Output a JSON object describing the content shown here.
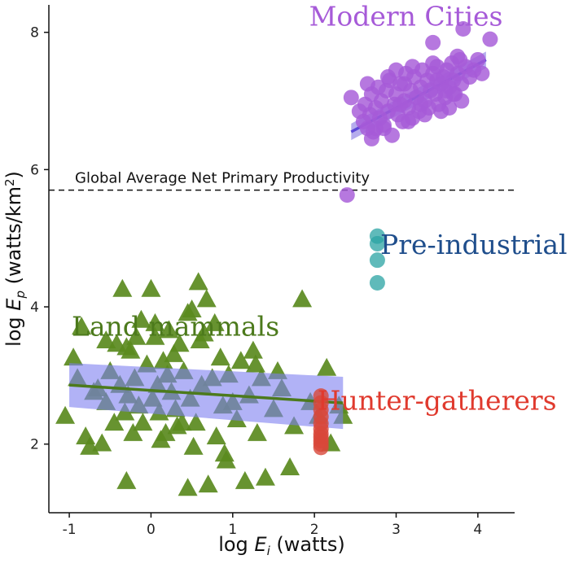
{
  "chart_data": {
    "type": "scatter",
    "xlabel": {
      "prefix": "log ",
      "var": "E",
      "sub": "i",
      "unit": " (watts)"
    },
    "ylabel": {
      "prefix": "log ",
      "var": "E",
      "sub": "p",
      "unit": " (watts/km",
      "sup": "2",
      "close": ")"
    },
    "xlim": [
      -1.25,
      4.45
    ],
    "ylim": [
      1.0,
      8.4
    ],
    "x_ticks": [
      -1,
      0,
      1,
      2,
      3,
      4
    ],
    "y_ticks": [
      2,
      4,
      6,
      8
    ],
    "grid": false,
    "reference_line": {
      "y": 5.7,
      "label": "Global Average Net Primary Productivity",
      "style": "dashed"
    },
    "colors": {
      "land_mammals": "#5a8a1e",
      "land_fit_band": "#7d7ff0",
      "land_fit_line": "#4c7a1c",
      "cities": "#a65ad8",
      "cities_fit": "#5b48d8",
      "pre_industrial": "#2aa3a3",
      "hunter_gatherers": "#d8473a",
      "pre_industrial_label": "#1f4e8c",
      "hunter_label": "#e03a2e"
    },
    "series": [
      {
        "name": "Modern Cities",
        "marker": "circle",
        "color_key": "cities",
        "x": [
          2.45,
          2.55,
          2.6,
          2.62,
          2.65,
          2.68,
          2.7,
          2.72,
          2.75,
          2.78,
          2.8,
          2.82,
          2.85,
          2.88,
          2.9,
          2.92,
          2.95,
          2.98,
          3.0,
          3.02,
          3.05,
          3.08,
          3.1,
          3.12,
          3.15,
          3.18,
          3.2,
          3.22,
          3.25,
          3.28,
          3.3,
          3.32,
          3.35,
          3.38,
          3.4,
          3.42,
          3.45,
          3.48,
          3.5,
          3.52,
          3.55,
          3.58,
          3.6,
          3.62,
          3.65,
          3.68,
          3.7,
          3.72,
          3.75,
          3.78,
          3.8,
          3.85,
          3.9,
          3.95,
          4.0,
          4.05,
          2.75,
          2.9,
          3.05,
          3.2,
          3.35,
          3.5,
          3.65,
          3.8,
          2.65,
          2.85,
          3.0,
          3.15,
          3.3,
          3.45,
          3.6,
          3.75,
          2.7,
          3.1,
          3.55,
          3.7,
          3.45,
          3.82,
          4.15,
          2.4
        ],
        "y": [
          7.05,
          6.85,
          6.7,
          6.95,
          6.6,
          6.8,
          7.1,
          6.55,
          6.9,
          7.2,
          6.75,
          7.0,
          6.65,
          7.15,
          6.85,
          7.3,
          6.5,
          6.95,
          7.1,
          6.8,
          7.25,
          6.7,
          7.0,
          7.4,
          6.9,
          7.15,
          6.75,
          7.35,
          7.05,
          6.85,
          7.2,
          7.45,
          7.0,
          7.3,
          6.9,
          7.15,
          7.4,
          7.1,
          7.5,
          6.95,
          7.25,
          7.35,
          7.05,
          7.45,
          7.2,
          7.55,
          7.3,
          7.1,
          7.4,
          7.6,
          7.25,
          7.5,
          7.35,
          7.45,
          7.6,
          7.4,
          6.6,
          7.35,
          6.95,
          7.5,
          6.8,
          7.3,
          6.9,
          7.0,
          7.25,
          6.6,
          7.45,
          6.7,
          6.95,
          7.55,
          7.15,
          7.65,
          6.45,
          7.25,
          6.85,
          7.1,
          7.85,
          8.05,
          7.9,
          5.63
        ]
      },
      {
        "name": "Pre-industrial",
        "marker": "circle",
        "color_key": "pre_industrial",
        "x": [
          2.77,
          2.77,
          2.77,
          2.77
        ],
        "y": [
          5.03,
          4.92,
          4.68,
          4.35
        ]
      },
      {
        "name": "Hunter-gatherers",
        "marker": "circle",
        "color_key": "hunter_gatherers",
        "x": [
          2.08,
          2.08,
          2.08,
          2.08,
          2.08,
          2.08,
          2.08,
          2.08,
          2.08,
          2.08,
          2.08
        ],
        "y": [
          2.7,
          2.6,
          2.5,
          2.4,
          2.3,
          2.22,
          2.15,
          2.1,
          2.05,
          2.0,
          1.95
        ]
      },
      {
        "name": "Land mammals",
        "marker": "triangle",
        "color_key": "land_mammals",
        "x": [
          -1.05,
          -0.95,
          -0.9,
          -0.85,
          -0.8,
          -0.75,
          -0.7,
          -0.6,
          -0.55,
          -0.5,
          -0.45,
          -0.42,
          -0.38,
          -0.35,
          -0.32,
          -0.3,
          -0.28,
          -0.25,
          -0.22,
          -0.2,
          -0.15,
          -0.12,
          -0.1,
          -0.05,
          0.0,
          0.02,
          0.05,
          0.08,
          0.1,
          0.15,
          0.18,
          0.2,
          0.22,
          0.25,
          0.28,
          0.3,
          0.35,
          0.38,
          0.4,
          0.45,
          0.48,
          0.5,
          0.55,
          0.58,
          0.6,
          0.62,
          0.65,
          0.7,
          0.75,
          0.78,
          0.8,
          0.85,
          0.88,
          0.9,
          0.95,
          1.0,
          1.05,
          1.1,
          1.15,
          1.2,
          1.25,
          1.3,
          1.35,
          1.4,
          1.5,
          1.55,
          1.6,
          1.7,
          1.75,
          1.85,
          1.95,
          2.05,
          2.15,
          2.2,
          2.3,
          2.35,
          -0.65,
          -0.3,
          0.05,
          0.45,
          0.68,
          1.28,
          -0.55,
          0.12,
          0.52,
          0.92,
          -0.18,
          0.32
        ],
        "y": [
          2.4,
          3.25,
          2.95,
          3.7,
          2.1,
          1.95,
          2.75,
          2.0,
          2.6,
          3.05,
          2.3,
          3.45,
          2.85,
          4.25,
          2.45,
          1.45,
          2.7,
          3.35,
          2.15,
          2.95,
          2.55,
          3.8,
          2.3,
          3.15,
          4.25,
          2.65,
          3.55,
          2.85,
          2.45,
          3.2,
          2.15,
          3.0,
          3.65,
          2.75,
          3.3,
          2.5,
          3.45,
          2.3,
          3.05,
          1.35,
          2.65,
          3.95,
          2.3,
          4.35,
          3.5,
          2.85,
          3.6,
          1.4,
          2.95,
          3.75,
          2.1,
          3.25,
          2.55,
          1.85,
          3.0,
          2.6,
          2.35,
          3.2,
          1.45,
          2.7,
          3.35,
          2.15,
          2.95,
          1.5,
          2.5,
          3.05,
          2.8,
          1.65,
          2.25,
          4.1,
          2.6,
          2.4,
          3.1,
          2.0,
          2.55,
          2.4,
          2.8,
          3.4,
          3.75,
          3.9,
          4.1,
          3.15,
          3.5,
          2.05,
          1.95,
          1.75,
          3.55,
          2.25
        ]
      }
    ],
    "fits": [
      {
        "series": "Land mammals",
        "x0": -1.0,
        "y0": 2.86,
        "x1": 2.35,
        "y1": 2.6,
        "band0": 0.32,
        "band1": 0.38
      },
      {
        "series": "Modern Cities",
        "x0": 2.45,
        "y0": 6.55,
        "x1": 4.1,
        "y1": 7.6,
        "band0": 0.12,
        "band1": 0.12
      }
    ],
    "group_labels": [
      {
        "text": "Modern Cities",
        "color_key": "cities",
        "x": 3.12,
        "y": 8.1
      },
      {
        "text": "Pre-industrial",
        "color_key": "pre_industrial_label",
        "x": 3.95,
        "y": 4.77
      },
      {
        "text": "Land mammals",
        "color_key": "land_fit_line",
        "x": 0.3,
        "y": 3.58
      },
      {
        "text": "Hunter-gatherers",
        "color_key": "hunter_label",
        "x": 3.5,
        "y": 2.5
      }
    ]
  }
}
